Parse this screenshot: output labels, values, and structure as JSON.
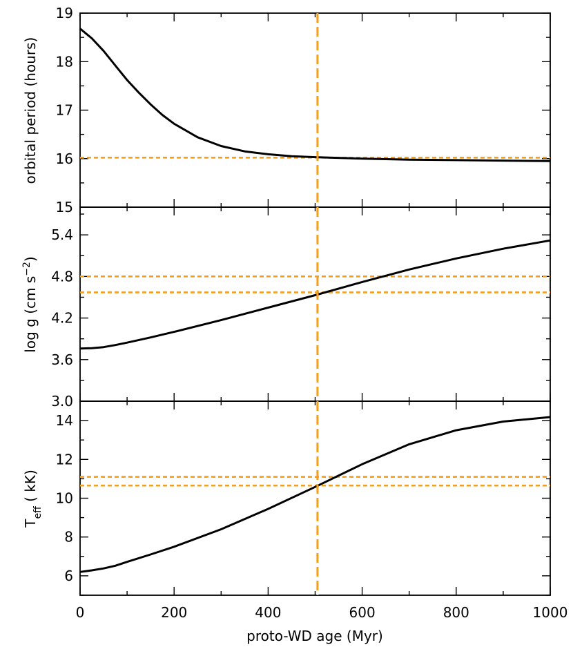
{
  "chart_data": [
    {
      "type": "line",
      "panel": "top",
      "ylabel": "orbital period (hours)",
      "ylim": [
        15,
        19
      ],
      "yticks": [
        15,
        16,
        17,
        18,
        19
      ],
      "ytick_labels": [
        "15",
        "16",
        "17",
        "18",
        "19"
      ],
      "xlim": [
        0,
        1000
      ],
      "series": [
        {
          "name": "orbital period",
          "x": [
            0,
            25,
            50,
            75,
            100,
            125,
            150,
            175,
            200,
            250,
            300,
            350,
            400,
            450,
            500,
            600,
            700,
            800,
            900,
            1000
          ],
          "values": [
            18.68,
            18.48,
            18.22,
            17.92,
            17.62,
            17.36,
            17.12,
            16.9,
            16.72,
            16.44,
            16.26,
            16.15,
            16.09,
            16.05,
            16.03,
            16.0,
            15.98,
            15.97,
            15.96,
            15.95
          ]
        }
      ],
      "hlines": [
        16.02
      ],
      "vline": 505
    },
    {
      "type": "line",
      "panel": "middle",
      "ylabel": "log g (cm s",
      "ylabel_sup": "−2",
      "ylabel_close": ")",
      "ylim": [
        3.0,
        5.8
      ],
      "yticks": [
        3.0,
        3.6,
        4.2,
        4.8,
        5.4
      ],
      "ytick_labels": [
        "3.0",
        "3.6",
        "4.2",
        "4.8",
        "5.4"
      ],
      "xlim": [
        0,
        1000
      ],
      "series": [
        {
          "name": "log g",
          "x": [
            0,
            25,
            50,
            75,
            100,
            150,
            200,
            300,
            400,
            500,
            600,
            700,
            800,
            900,
            1000
          ],
          "values": [
            3.76,
            3.765,
            3.78,
            3.81,
            3.845,
            3.92,
            4.0,
            4.17,
            4.35,
            4.53,
            4.72,
            4.9,
            5.06,
            5.2,
            5.32
          ]
        }
      ],
      "hlines": [
        4.8,
        4.57
      ],
      "vline": 505
    },
    {
      "type": "line",
      "panel": "bottom",
      "ylabel": "T",
      "ylabel_sub": "eff",
      "ylabel_rest": " ( kK)",
      "xlabel": "proto-WD age (Myr)",
      "ylim": [
        5,
        15
      ],
      "yticks": [
        6,
        8,
        10,
        12,
        14
      ],
      "ytick_labels": [
        "6",
        "8",
        "10",
        "12",
        "14"
      ],
      "xlim": [
        0,
        1000
      ],
      "xticks": [
        0,
        200,
        400,
        600,
        800,
        1000
      ],
      "xtick_labels": [
        "0",
        "200",
        "400",
        "600",
        "800",
        "1000"
      ],
      "series": [
        {
          "name": "Teff",
          "x": [
            0,
            25,
            50,
            75,
            100,
            150,
            200,
            300,
            400,
            500,
            600,
            700,
            800,
            900,
            1000
          ],
          "values": [
            6.2,
            6.28,
            6.38,
            6.52,
            6.72,
            7.1,
            7.5,
            8.4,
            9.45,
            10.58,
            11.75,
            12.78,
            13.5,
            13.95,
            14.18
          ]
        }
      ],
      "hlines": [
        11.1,
        10.65
      ],
      "vline": 505
    }
  ]
}
